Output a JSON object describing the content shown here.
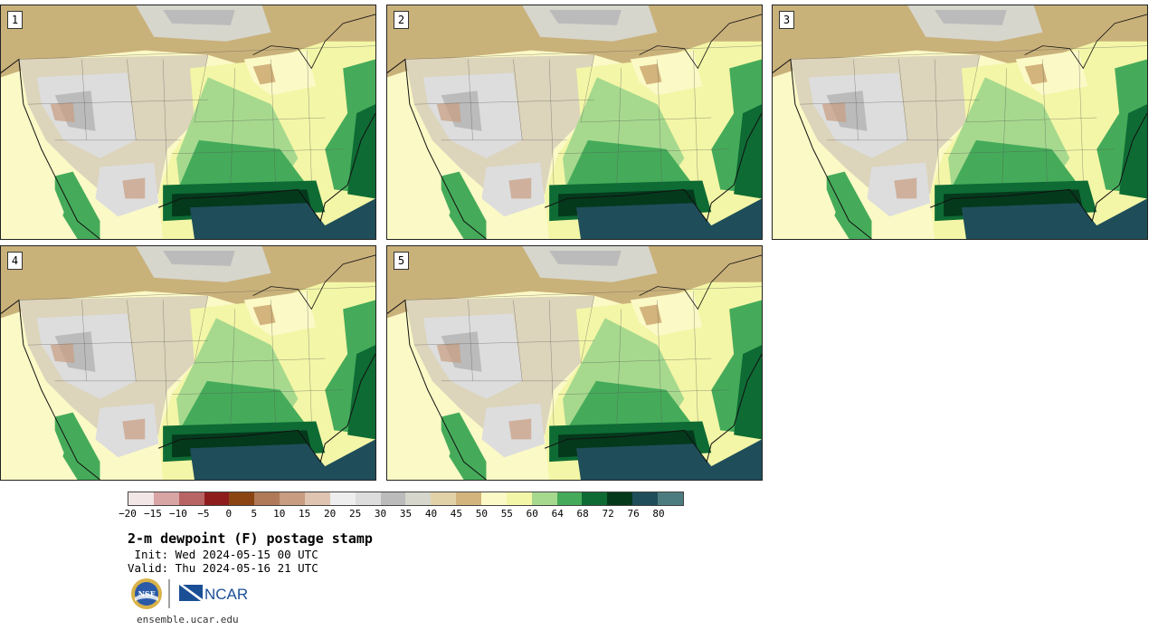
{
  "panels": [
    {
      "label": "1",
      "variant": 0
    },
    {
      "label": "2",
      "variant": 1
    },
    {
      "label": "3",
      "variant": 2
    },
    {
      "label": "4",
      "variant": 3
    },
    {
      "label": "5",
      "variant": 4
    }
  ],
  "colorbar": {
    "colors": [
      "#f2e6e6",
      "#d9a4a4",
      "#b96464",
      "#8e1c1c",
      "#8b4513",
      "#b07a58",
      "#c79c80",
      "#dfc4b2",
      "#eeeeee",
      "#dddddd",
      "#bbbbbb",
      "#d6d6cc",
      "#e2d2a8",
      "#d3b47c",
      "#fbf9c6",
      "#f3f6a6",
      "#a6d98e",
      "#45ab5a",
      "#0e6b34",
      "#04391c",
      "#1f4e5a",
      "#4d7c80"
    ],
    "ticks": [
      "−20",
      "−15",
      "−10",
      "−5",
      "0",
      "5",
      "10",
      "15",
      "20",
      "25",
      "30",
      "35",
      "40",
      "45",
      "50",
      "55",
      "60",
      "64",
      "68",
      "72",
      "76",
      "80"
    ]
  },
  "header": {
    "title": "2-m dewpoint (F) postage stamp",
    "init": " Init: Wed 2024-05-15 00 UTC",
    "valid": "Valid: Thu 2024-05-16 21 UTC"
  },
  "logos": {
    "nsf": "NSF",
    "ncar": "NCAR"
  },
  "footer": {
    "site": "ensemble.ucar.edu"
  }
}
